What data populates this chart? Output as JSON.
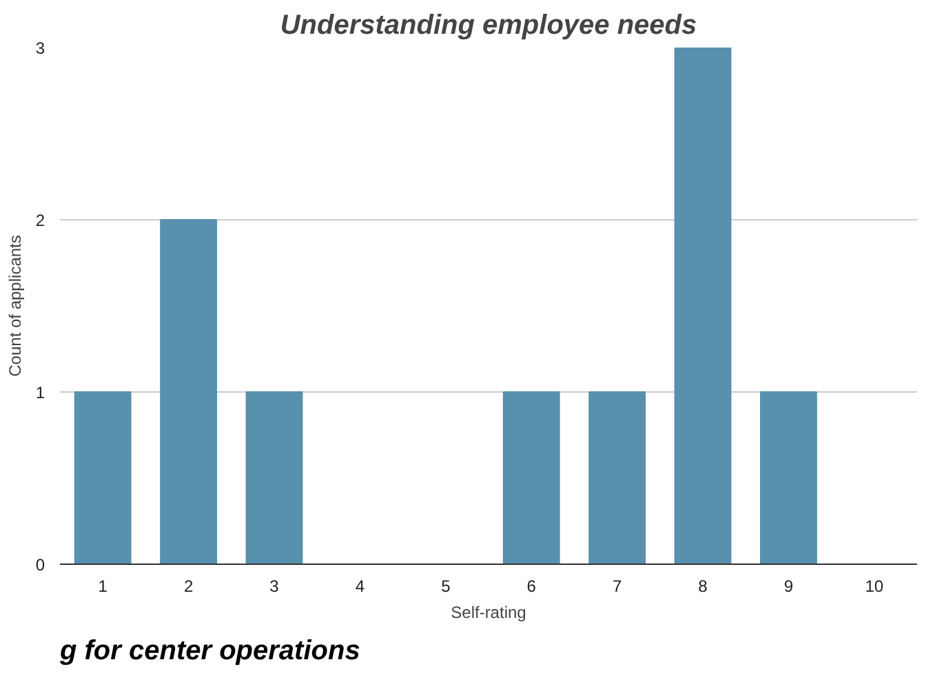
{
  "chart_data": {
    "type": "bar",
    "title": "Understanding employee needs",
    "xlabel": "Self-rating",
    "ylabel": "Count of applicants",
    "categories": [
      "1",
      "2",
      "3",
      "4",
      "5",
      "6",
      "7",
      "8",
      "9",
      "10"
    ],
    "values": [
      1,
      2,
      1,
      0,
      0,
      1,
      1,
      3,
      1,
      0
    ],
    "color": "#5891ad",
    "ylim": [
      0,
      3
    ],
    "yticks": [
      0,
      1,
      2,
      3
    ],
    "grid": "y",
    "annotations": [
      "g for center operations"
    ]
  }
}
